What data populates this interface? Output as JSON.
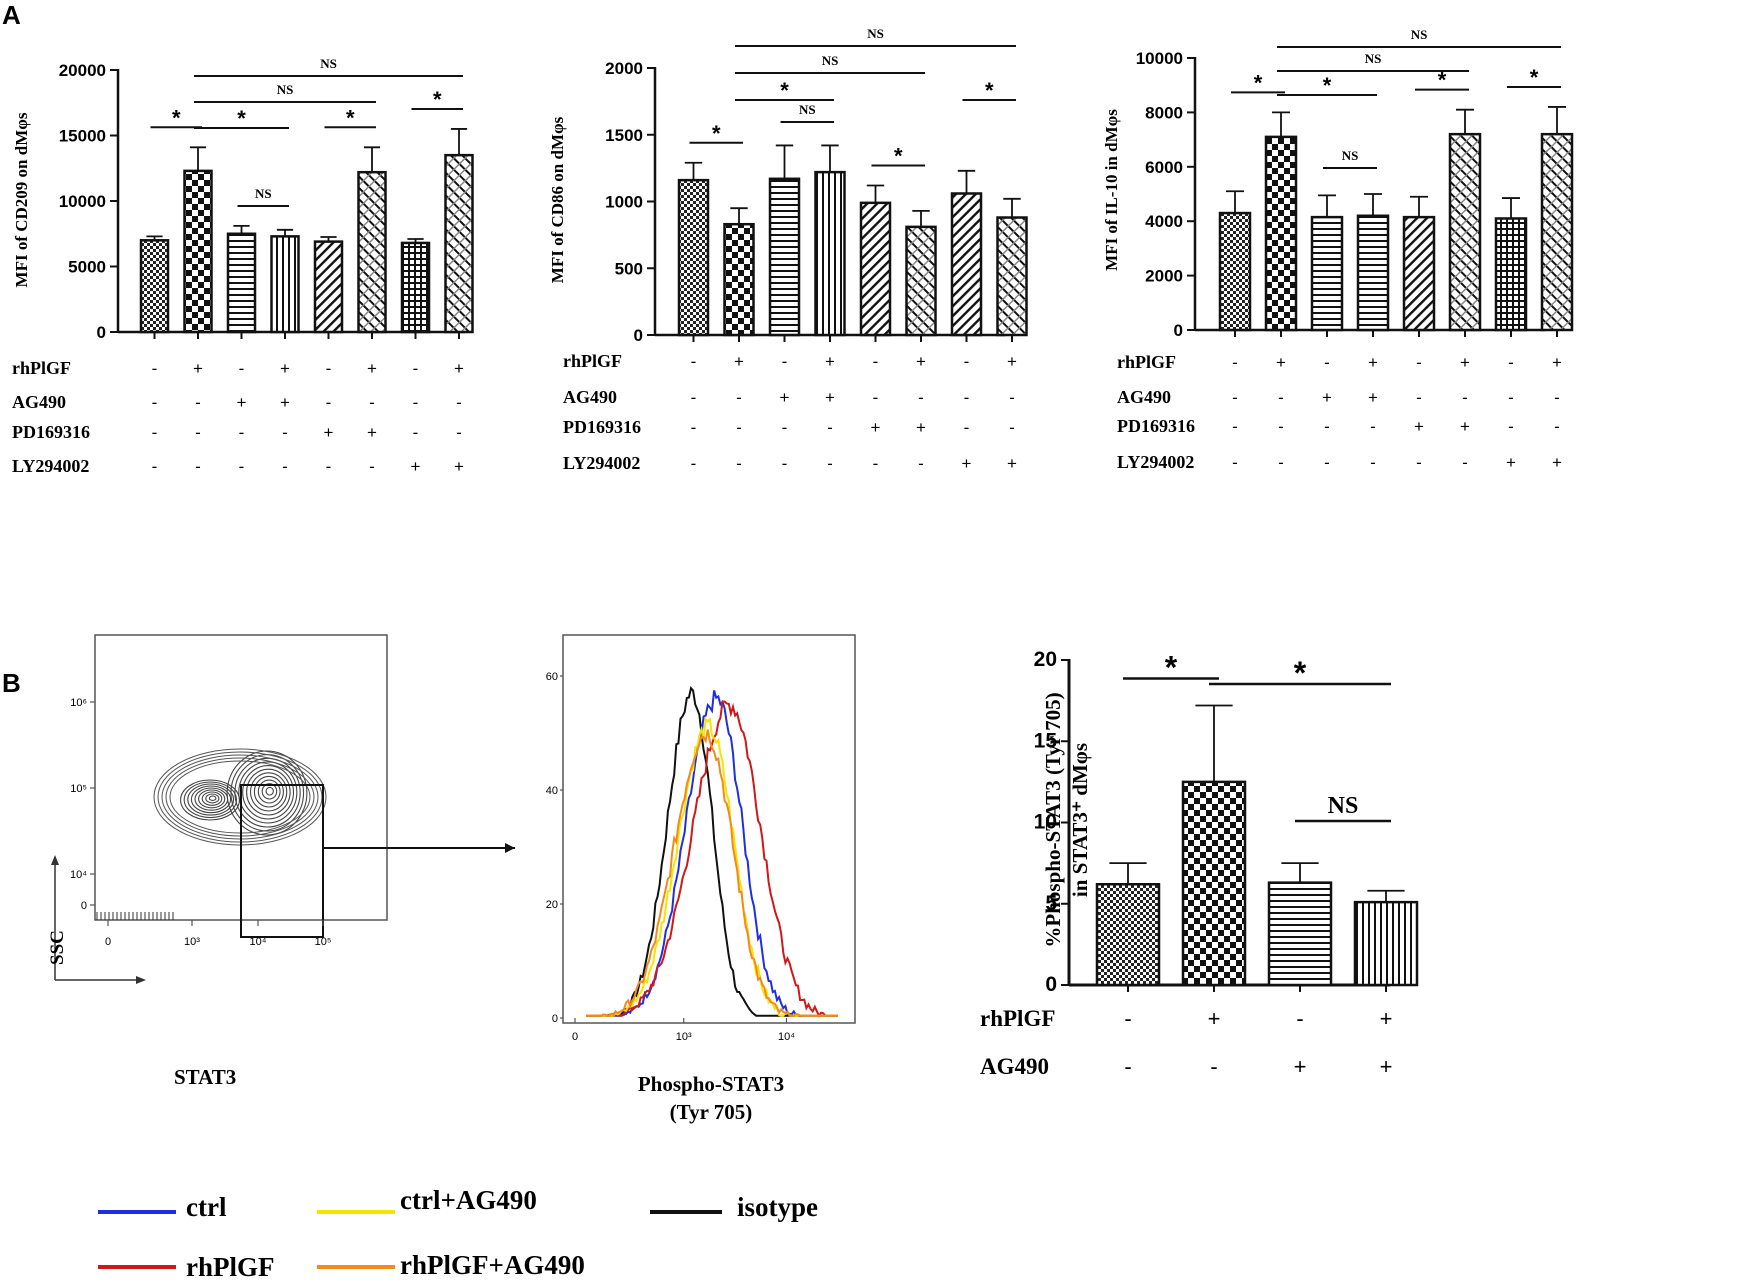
{
  "panels": {
    "a": "A",
    "b": "B"
  },
  "colors": {
    "ctrl": "#1f2fe0",
    "rhplgf": "#d01818",
    "ctrl_ag490": "#f5e400",
    "rhplgf_ag490": "#f28a1c",
    "isotype": "#111111"
  },
  "chart_data": [
    {
      "type": "bar",
      "id": "cd209",
      "ylabel": "MFI of CD209 on dMφs",
      "ylim": [
        0,
        20000
      ],
      "yticks": [
        "0",
        "5000",
        "10000",
        "15000",
        "20000"
      ],
      "values": [
        7000,
        12300,
        7500,
        7300,
        6900,
        12200,
        6800,
        13500
      ],
      "errors": [
        300,
        1800,
        600,
        500,
        350,
        1900,
        300,
        2000
      ],
      "patterns": [
        "dots",
        "checker",
        "hlines",
        "vlines",
        "diag",
        "diag2",
        "grid",
        "diag2"
      ],
      "factors": [
        {
          "label": "rhPlGF",
          "signs": [
            "-",
            "+",
            "-",
            "+",
            "-",
            "+",
            "-",
            "+"
          ]
        },
        {
          "label": "AG490",
          "signs": [
            "-",
            "-",
            "+",
            "+",
            "-",
            "-",
            "-",
            "-"
          ]
        },
        {
          "label": "PD169316",
          "signs": [
            "-",
            "-",
            "-",
            "-",
            "+",
            "+",
            "-",
            "-"
          ]
        },
        {
          "label": "LY294002",
          "signs": [
            "-",
            "-",
            "-",
            "-",
            "-",
            "-",
            "+",
            "+"
          ]
        }
      ],
      "significance": [
        {
          "from": 0,
          "to": 1,
          "label": "*",
          "level": 0
        },
        {
          "from": 1,
          "to": 3,
          "label": "*",
          "level": 1
        },
        {
          "from": 2,
          "to": 3,
          "label": "NS",
          "level": -1
        },
        {
          "from": 4,
          "to": 5,
          "label": "*",
          "level": 0
        },
        {
          "from": 6,
          "to": 7,
          "label": "*",
          "level": 0
        },
        {
          "from": 1,
          "to": 5,
          "label": "NS",
          "level": 2
        },
        {
          "from": 1,
          "to": 7,
          "label": "NS",
          "level": 3
        }
      ]
    },
    {
      "type": "bar",
      "id": "cd86",
      "ylabel": "MFI of CD86 on dMφs",
      "ylim": [
        0,
        2000
      ],
      "yticks": [
        "0",
        "500",
        "1000",
        "1500",
        "2000"
      ],
      "values": [
        1160,
        830,
        1170,
        1220,
        990,
        810,
        1060,
        880
      ],
      "errors": [
        130,
        120,
        250,
        200,
        130,
        120,
        170,
        140
      ],
      "patterns": [
        "dots",
        "checker",
        "hlines",
        "vlines",
        "diag",
        "diag2",
        "diag",
        "diag2"
      ],
      "factors": [
        {
          "label": "rhPlGF",
          "signs": [
            "-",
            "+",
            "-",
            "+",
            "-",
            "+",
            "-",
            "+"
          ]
        },
        {
          "label": "AG490",
          "signs": [
            "-",
            "-",
            "+",
            "+",
            "-",
            "-",
            "-",
            "-"
          ]
        },
        {
          "label": "PD169316",
          "signs": [
            "-",
            "-",
            "-",
            "-",
            "+",
            "+",
            "-",
            "-"
          ]
        },
        {
          "label": "LY294002",
          "signs": [
            "-",
            "-",
            "-",
            "-",
            "-",
            "-",
            "+",
            "+"
          ]
        }
      ],
      "significance": [
        {
          "from": 0,
          "to": 1,
          "label": "*",
          "level": 0
        },
        {
          "from": 1,
          "to": 3,
          "label": "*",
          "level": 1
        },
        {
          "from": 2,
          "to": 3,
          "label": "NS",
          "level": -1
        },
        {
          "from": 4,
          "to": 5,
          "label": "*",
          "level": 0
        },
        {
          "from": 6,
          "to": 7,
          "label": "*",
          "level": 1
        },
        {
          "from": 1,
          "to": 5,
          "label": "NS",
          "level": 2
        },
        {
          "from": 1,
          "to": 7,
          "label": "NS",
          "level": 3
        }
      ]
    },
    {
      "type": "bar",
      "id": "il10",
      "ylabel": "MFI of IL-10 in dMφs",
      "ylim": [
        0,
        10000
      ],
      "yticks": [
        "0",
        "2000",
        "4000",
        "6000",
        "8000",
        "10000"
      ],
      "values": [
        4300,
        7100,
        4150,
        4200,
        4150,
        7200,
        4100,
        7200
      ],
      "errors": [
        800,
        900,
        800,
        800,
        750,
        900,
        750,
        1000
      ],
      "patterns": [
        "dots",
        "checker",
        "hlines",
        "hlines",
        "diag",
        "diag2",
        "grid",
        "diag2"
      ],
      "factors": [
        {
          "label": "rhPlGF",
          "signs": [
            "-",
            "+",
            "-",
            "+",
            "-",
            "+",
            "-",
            "+"
          ]
        },
        {
          "label": "AG490",
          "signs": [
            "-",
            "-",
            "+",
            "+",
            "-",
            "-",
            "-",
            "-"
          ]
        },
        {
          "label": "PD169316",
          "signs": [
            "-",
            "-",
            "-",
            "-",
            "+",
            "+",
            "-",
            "-"
          ]
        },
        {
          "label": "LY294002",
          "signs": [
            "-",
            "-",
            "-",
            "-",
            "-",
            "-",
            "+",
            "+"
          ]
        }
      ],
      "significance": [
        {
          "from": 0,
          "to": 1,
          "label": "*",
          "level": 0
        },
        {
          "from": 1,
          "to": 3,
          "label": "*",
          "level": 1
        },
        {
          "from": 2,
          "to": 3,
          "label": "NS",
          "level": -1
        },
        {
          "from": 4,
          "to": 5,
          "label": "*",
          "level": 0
        },
        {
          "from": 6,
          "to": 7,
          "label": "*",
          "level": 0
        },
        {
          "from": 1,
          "to": 5,
          "label": "NS",
          "level": 2
        },
        {
          "from": 1,
          "to": 7,
          "label": "NS",
          "level": 3
        }
      ]
    },
    {
      "type": "bar",
      "id": "pstat3",
      "ylabel": "%Phospho-STAT3 (Tyr 705)",
      "ylabel2": "in STAT3⁺ dMφs",
      "ylim": [
        0,
        20
      ],
      "yticks": [
        "0",
        "5",
        "10",
        "15",
        "20"
      ],
      "values": [
        6.2,
        12.5,
        6.3,
        5.1
      ],
      "errors": [
        1.3,
        4.7,
        1.2,
        0.7
      ],
      "patterns": [
        "dots",
        "checker",
        "hlines",
        "vlines"
      ],
      "factors": [
        {
          "label": "rhPlGF",
          "signs": [
            "-",
            "+",
            "-",
            "+"
          ]
        },
        {
          "label": "AG490",
          "signs": [
            "-",
            "-",
            "+",
            "+"
          ]
        }
      ],
      "significance": [
        {
          "from": 0,
          "to": 1,
          "label": "*",
          "level": 0
        },
        {
          "from": 1,
          "to": 3,
          "label": "*",
          "level": 1
        },
        {
          "from": 2,
          "to": 3,
          "label": "NS",
          "level": -1
        }
      ]
    },
    {
      "type": "contour",
      "id": "gating",
      "xlabel": "STAT3",
      "ylabel": "SSC",
      "xticks": [
        "0",
        "10³",
        "10⁴",
        "10⁵"
      ],
      "yticks": [
        "0",
        "10⁴",
        "10⁵",
        "10⁶"
      ]
    },
    {
      "type": "line",
      "id": "histogram",
      "xlabel": "Phospho-STAT3",
      "xlabel2": "(Tyr 705)",
      "yticks": [
        "0",
        "20",
        "40",
        "60"
      ],
      "xticks": [
        "0",
        "10³",
        "10⁴"
      ],
      "ylim": [
        0,
        65
      ],
      "series": [
        {
          "name": "isotype",
          "color": "#111111",
          "peak_log": 3.08,
          "width": 0.24,
          "height": 57
        },
        {
          "name": "ctrl",
          "color": "#1f2fe0",
          "peak_log": 3.32,
          "width": 0.3,
          "height": 56
        },
        {
          "name": "rhPlGF",
          "color": "#d01818",
          "peak_log": 3.45,
          "width": 0.36,
          "height": 55
        },
        {
          "name": "ctrl+AG490",
          "color": "#f5e400",
          "peak_log": 3.24,
          "width": 0.3,
          "height": 51
        },
        {
          "name": "rhPlGF+AG490",
          "color": "#f28a1c",
          "peak_log": 3.22,
          "width": 0.31,
          "height": 50
        }
      ]
    }
  ],
  "legend": [
    {
      "label": "ctrl",
      "color": "#1f2fe0"
    },
    {
      "label": "ctrl+AG490",
      "color": "#f5e400"
    },
    {
      "label": "isotype",
      "color": "#111111"
    },
    {
      "label": "rhPlGF",
      "color": "#d01818"
    },
    {
      "label": "rhPlGF+AG490",
      "color": "#f28a1c"
    }
  ]
}
